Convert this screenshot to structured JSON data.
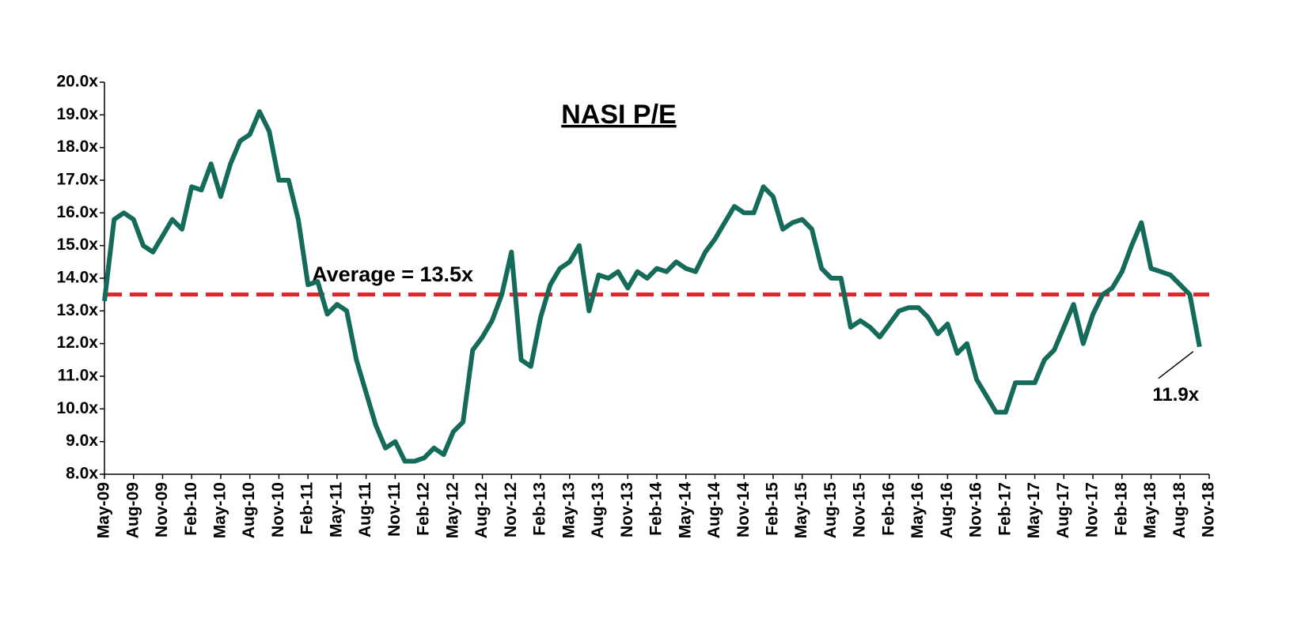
{
  "chart_data": {
    "type": "line",
    "title": "NASI P/E",
    "categories": [
      "May-09",
      null,
      null,
      "Aug-09",
      null,
      null,
      "Nov-09",
      null,
      null,
      "Feb-10",
      null,
      null,
      "May-10",
      null,
      null,
      "Aug-10",
      null,
      null,
      "Nov-10",
      null,
      null,
      "Feb-11",
      null,
      null,
      "May-11",
      null,
      null,
      "Aug-11",
      null,
      null,
      "Nov-11",
      null,
      null,
      "Feb-12",
      null,
      null,
      "May-12",
      null,
      null,
      "Aug-12",
      null,
      null,
      "Nov-12",
      null,
      null,
      "Feb-13",
      null,
      null,
      "May-13",
      null,
      null,
      "Aug-13",
      null,
      null,
      "Nov-13",
      null,
      null,
      "Feb-14",
      null,
      null,
      "May-14",
      null,
      null,
      "Aug-14",
      null,
      null,
      "Nov-14",
      null,
      null,
      "Feb-15",
      null,
      null,
      "May-15",
      null,
      null,
      "Aug-15",
      null,
      null,
      "Nov-15",
      null,
      null,
      "Feb-16",
      null,
      null,
      "May-16",
      null,
      null,
      "Aug-16",
      null,
      null,
      "Nov-16",
      null,
      null,
      "Feb-17",
      null,
      null,
      "May-17",
      null,
      null,
      "Aug-17",
      null,
      null,
      "Nov-17",
      null,
      null,
      "Feb-18",
      null,
      null,
      "May-18",
      null,
      null,
      "Aug-18",
      null,
      null,
      "Nov-18"
    ],
    "series": [
      {
        "name": "NASI P/E",
        "color": "#146b5a",
        "values": [
          13.3,
          15.8,
          16.0,
          15.8,
          15.0,
          14.8,
          15.3,
          15.8,
          15.5,
          16.8,
          16.7,
          17.5,
          16.5,
          17.5,
          18.2,
          18.4,
          19.1,
          18.5,
          17.0,
          17.0,
          15.8,
          13.8,
          13.9,
          12.9,
          13.2,
          13.0,
          11.5,
          10.5,
          9.5,
          8.8,
          9.0,
          8.4,
          8.4,
          8.5,
          8.8,
          8.6,
          9.3,
          9.6,
          11.8,
          12.2,
          12.7,
          13.5,
          14.8,
          11.5,
          11.3,
          12.8,
          13.8,
          14.3,
          14.5,
          15.0,
          13.0,
          14.1,
          14.0,
          14.2,
          13.7,
          14.2,
          14.0,
          14.3,
          14.2,
          14.5,
          14.3,
          14.2,
          14.8,
          15.2,
          15.7,
          16.2,
          16.0,
          16.0,
          16.8,
          16.5,
          15.5,
          15.7,
          15.8,
          15.5,
          14.3,
          14.0,
          14.0,
          12.5,
          12.7,
          12.5,
          12.2,
          12.6,
          13.0,
          13.1,
          13.1,
          12.8,
          12.3,
          12.6,
          11.7,
          12.0,
          10.9,
          10.4,
          9.9,
          9.9,
          10.8,
          10.8,
          10.8,
          11.5,
          11.8,
          12.5,
          13.2,
          12.0,
          12.9,
          13.5,
          13.7,
          14.2,
          15.0,
          15.7,
          14.3,
          14.2,
          14.1,
          13.8,
          13.5,
          11.9,
          null
        ]
      }
    ],
    "average": {
      "value": 13.5,
      "label": "Average = 13.5x",
      "color": "#e8202a"
    },
    "end_label": {
      "value": 11.9,
      "label": "11.9x"
    },
    "ylim": [
      8,
      20
    ],
    "yticks": [
      {
        "value": 8,
        "label": "8.0x"
      },
      {
        "value": 9,
        "label": "9.0x"
      },
      {
        "value": 10,
        "label": "10.0x"
      },
      {
        "value": 11,
        "label": "11.0x"
      },
      {
        "value": 12,
        "label": "12.0x"
      },
      {
        "value": 13,
        "label": "13.0x"
      },
      {
        "value": 14,
        "label": "14.0x"
      },
      {
        "value": 15,
        "label": "15.0x"
      },
      {
        "value": 16,
        "label": "16.0x"
      },
      {
        "value": 17,
        "label": "17.0x"
      },
      {
        "value": 18,
        "label": "18.0x"
      },
      {
        "value": 19,
        "label": "19.0x"
      },
      {
        "value": 20,
        "label": "20.0x"
      }
    ]
  }
}
